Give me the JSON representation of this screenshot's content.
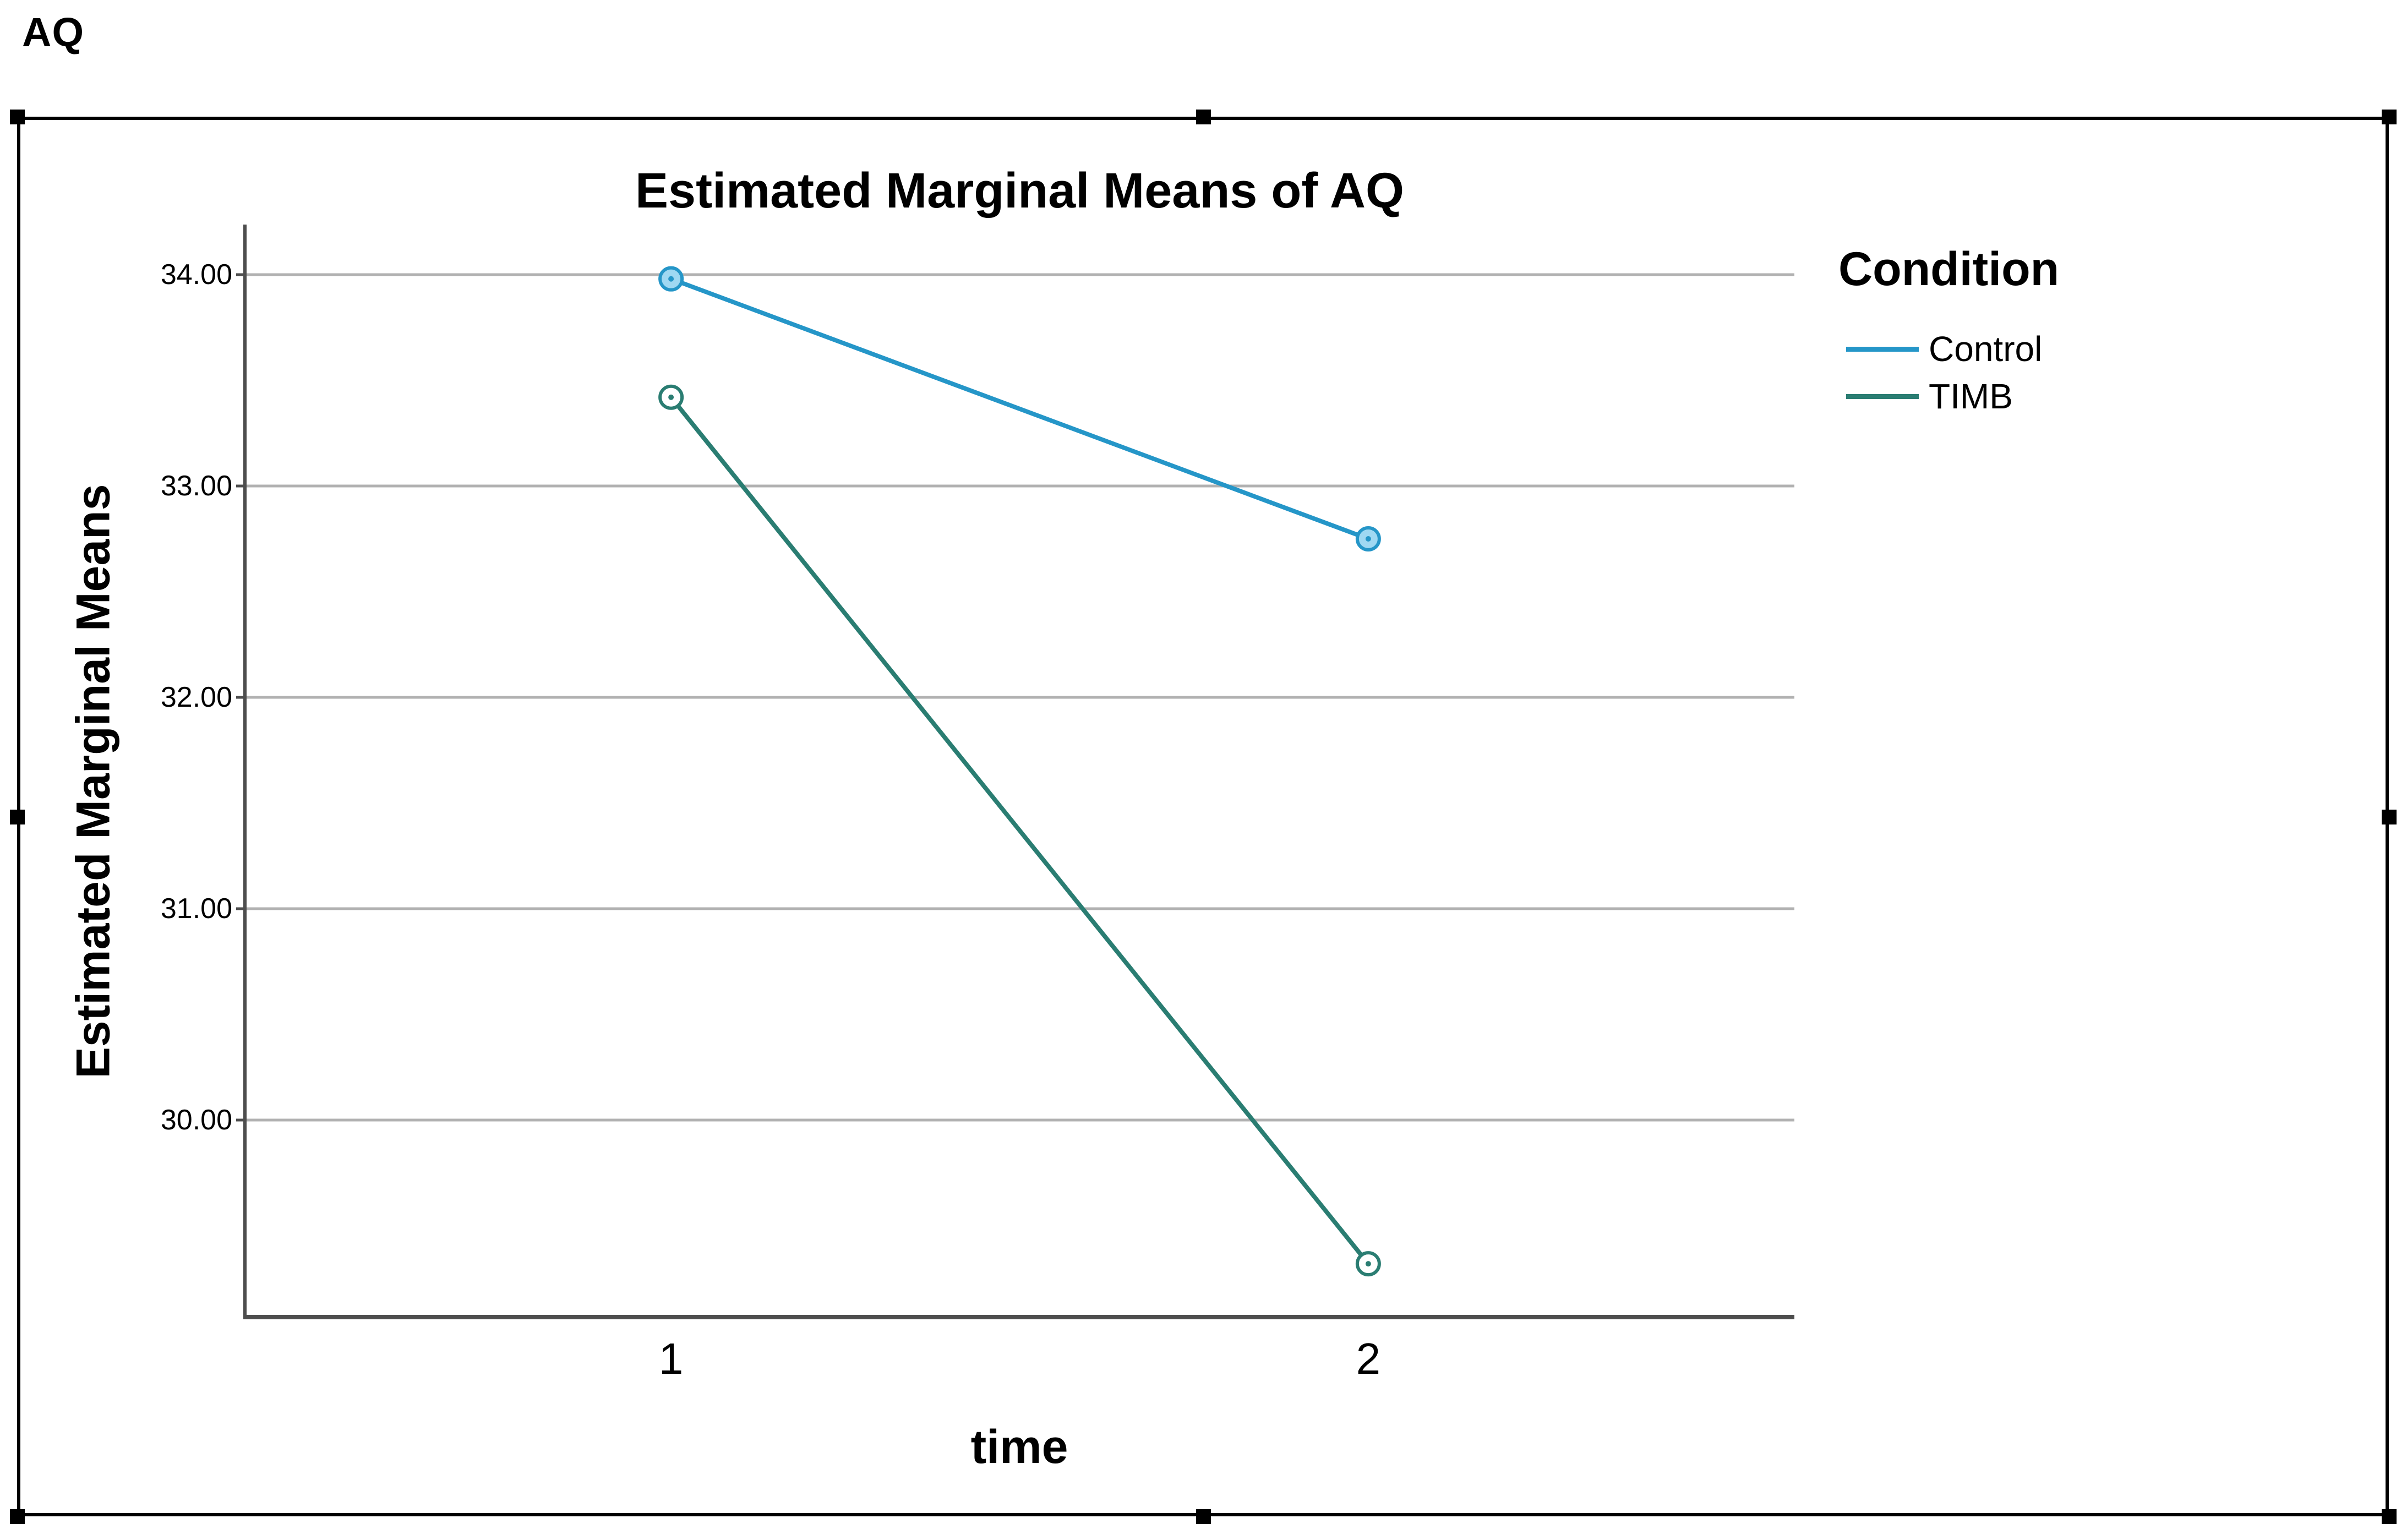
{
  "page": {
    "output_label": "AQ"
  },
  "chart_data": {
    "type": "line",
    "title": "Estimated Marginal Means of AQ",
    "xlabel": "time",
    "ylabel": "Estimated Marginal Means",
    "categories": [
      "1",
      "2"
    ],
    "series": [
      {
        "name": "Control",
        "values": [
          33.98,
          32.75
        ],
        "color": "#2596c8",
        "marker_fill": "#9fd8f2"
      },
      {
        "name": "TIMB",
        "values": [
          33.42,
          29.32
        ],
        "color": "#2a7d72",
        "marker_fill": "#ffffff"
      }
    ],
    "legend_title": "Condition",
    "legend_position": "right",
    "y_ticks": [
      {
        "label": "34.00",
        "value": 34
      },
      {
        "label": "33.00",
        "value": 33
      },
      {
        "label": "32.00",
        "value": 32
      },
      {
        "label": "31.00",
        "value": 31
      },
      {
        "label": "30.00",
        "value": 30
      }
    ],
    "ylim": [
      29.07,
      34.24
    ],
    "grid": "horizontal",
    "gridline_color": "#b1b1b1",
    "axis_color": "#4d4d4d",
    "selection_state": "selected"
  }
}
